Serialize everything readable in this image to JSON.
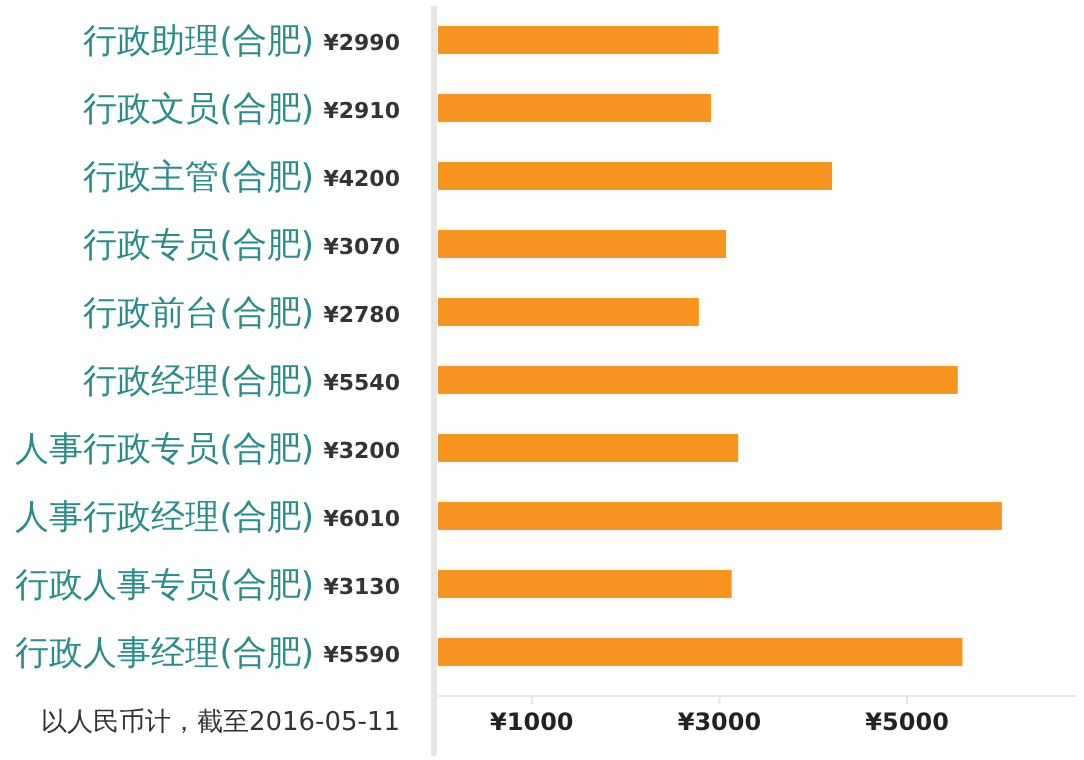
{
  "chart_data": {
    "type": "bar",
    "orientation": "horizontal",
    "categories": [
      "行政助理(合肥)",
      "行政文员(合肥)",
      "行政主管(合肥)",
      "行政专员(合肥)",
      "行政前台(合肥)",
      "行政经理(合肥)",
      "人事行政专员(合肥)",
      "人事行政经理(合肥)",
      "行政人事专员(合肥)",
      "行政人事经理(合肥)"
    ],
    "values": [
      2990,
      2910,
      4200,
      3070,
      2780,
      5540,
      3200,
      6010,
      3130,
      5590
    ],
    "value_labels": [
      "¥2990",
      "¥2910",
      "¥4200",
      "¥3070",
      "¥2780",
      "¥5540",
      "¥3200",
      "¥6010",
      "¥3130",
      "¥5590"
    ],
    "color": "#f7931e",
    "xlim": [
      0,
      6800
    ],
    "xticks": [
      {
        "value": 1000,
        "label": "¥1000"
      },
      {
        "value": 3000,
        "label": "¥3000"
      },
      {
        "value": 5000,
        "label": "¥5000"
      }
    ],
    "annotations": [
      "以人民币计，截至2016-05-11"
    ]
  }
}
